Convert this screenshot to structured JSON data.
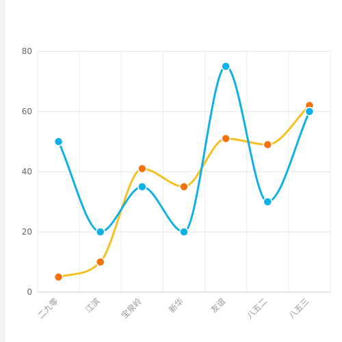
{
  "chart_data": {
    "type": "line",
    "smooth": true,
    "categories": [
      "二九零",
      "江滨",
      "宝泉岭",
      "新华",
      "友谊",
      "八五二",
      "八五三"
    ],
    "series": [
      {
        "color": "#f6c022",
        "marker_color": "#f5730f",
        "values": [
          5,
          10,
          41,
          35,
          51,
          49,
          62
        ]
      },
      {
        "color": "#0fb0e6",
        "marker_color": "#0fb0e6",
        "values": [
          50,
          20,
          35,
          20,
          75,
          30,
          60
        ]
      }
    ],
    "ylim": [
      0,
      80
    ],
    "yticks": [
      0,
      20,
      40,
      60,
      80
    ],
    "grid": true,
    "legend": "none",
    "x_tick_rotation_deg": -45
  }
}
